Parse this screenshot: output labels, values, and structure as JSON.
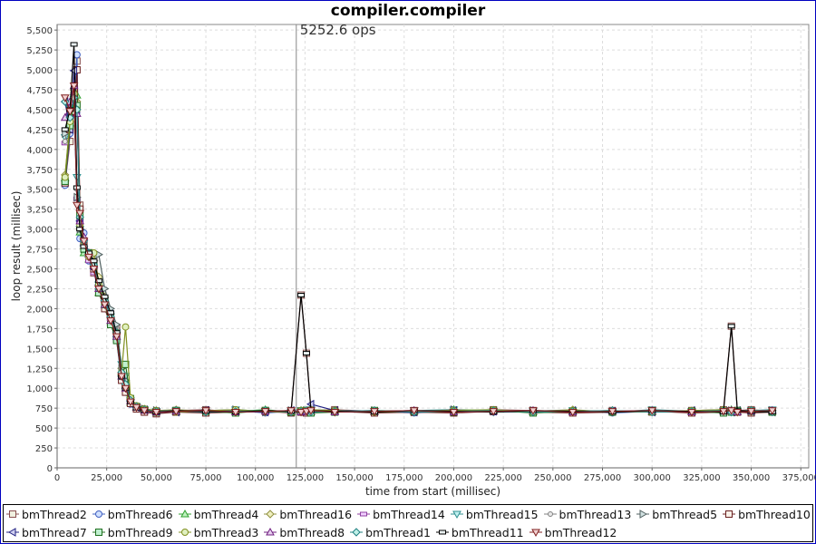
{
  "chart_data": {
    "type": "line",
    "title": "compiler.compiler",
    "xlabel": "time from start (millisec)",
    "ylabel": "loop result (millisec)",
    "xlim": [
      0,
      379000
    ],
    "ylim": [
      0,
      5570
    ],
    "xticks": [
      0,
      25000,
      50000,
      75000,
      100000,
      125000,
      150000,
      175000,
      200000,
      225000,
      250000,
      275000,
      300000,
      325000,
      350000,
      375000
    ],
    "xtick_labels": [
      "0",
      "25,000",
      "50,000",
      "75,000",
      "100,000",
      "125,000",
      "150,000",
      "175,000",
      "200,000",
      "225,000",
      "250,000",
      "275,000",
      "300,000",
      "325,000",
      "350,000",
      "375,000"
    ],
    "yticks": [
      0,
      250,
      500,
      750,
      1000,
      1250,
      1500,
      1750,
      2000,
      2250,
      2500,
      2750,
      3000,
      3250,
      3500,
      3750,
      4000,
      4250,
      4500,
      4750,
      5000,
      5250,
      5500
    ],
    "ytick_labels": [
      "0",
      "250",
      "500",
      "750",
      "1,000",
      "1,250",
      "1,500",
      "1,750",
      "2,000",
      "2,250",
      "2,500",
      "2,750",
      "3,000",
      "3,250",
      "3,500",
      "3,750",
      "4,000",
      "4,250",
      "4,500",
      "4,750",
      "5,000",
      "5,250",
      "5,500"
    ],
    "grid": true,
    "legend_placement": "bottom",
    "annotation": {
      "x": 120600,
      "label": "5252.6 ops"
    },
    "x": [
      4000,
      6500,
      8500,
      10000,
      11500,
      13500,
      16000,
      18500,
      21000,
      24000,
      27000,
      30000,
      32500,
      34500,
      37000,
      40000,
      44000,
      50000,
      60000,
      75000,
      90000,
      105000,
      118000,
      123000,
      125700,
      128000,
      140000,
      160000,
      180000,
      200000,
      220000,
      240000,
      260000,
      280000,
      300000,
      320000,
      336000,
      340000,
      343000,
      350000,
      360600
    ],
    "series": [
      {
        "name": "bmThread2",
        "marker": "square",
        "stroke": "#8a5050",
        "fill": "#f0f0e0",
        "values": [
          3570,
          4100,
          4500,
          5110,
          3300,
          2800,
          2700,
          2450,
          2250,
          2100,
          1900,
          1750,
          1150,
          1000,
          830,
          760,
          720,
          700,
          720,
          730,
          700,
          720,
          710,
          2170,
          1440,
          720,
          730,
          710,
          720,
          700,
          730,
          720,
          710,
          720,
          700,
          720,
          730,
          1780,
          720,
          730,
          710
        ]
      },
      {
        "name": "bmThread6",
        "marker": "circle",
        "stroke": "#4060c0",
        "fill": "#d0e0ff",
        "values": [
          3550,
          4200,
          4550,
          5190,
          2880,
          2950,
          2600,
          2500,
          2300,
          2000,
          1950,
          1600,
          1100,
          950,
          800,
          740,
          700,
          690,
          710,
          700,
          720,
          690,
          710,
          720,
          690,
          700,
          720,
          710,
          690,
          720,
          700,
          710,
          720,
          690,
          710,
          700,
          720,
          700,
          710,
          720,
          700
        ]
      },
      {
        "name": "bmThread4",
        "marker": "triangle-up",
        "stroke": "#30a030",
        "fill": "#c0f0c0",
        "values": [
          3640,
          4330,
          4700,
          4680,
          2960,
          2700,
          2620,
          2550,
          2200,
          2050,
          1850,
          1650,
          1200,
          1050,
          820,
          760,
          730,
          710,
          700,
          720,
          710,
          730,
          700,
          720,
          710,
          700,
          720,
          700,
          710,
          730,
          720,
          700,
          710,
          720,
          700,
          710,
          720,
          730,
          700,
          720,
          710
        ]
      },
      {
        "name": "bmThread16",
        "marker": "diamond",
        "stroke": "#909040",
        "fill": "#f0f0c0",
        "values": [
          3680,
          4350,
          4750,
          4600,
          3000,
          2750,
          2700,
          2600,
          2400,
          2150,
          1900,
          1700,
          1250,
          1050,
          850,
          770,
          740,
          720,
          730,
          710,
          720,
          700,
          720,
          710,
          720,
          730,
          700,
          720,
          710,
          700,
          720,
          710,
          730,
          700,
          720,
          710,
          700,
          720,
          710,
          700,
          720
        ]
      },
      {
        "name": "bmThread14",
        "marker": "rect",
        "stroke": "#9040a0",
        "fill": "#f0d0ff",
        "values": [
          4080,
          4550,
          4580,
          3380,
          3100,
          2800,
          2600,
          2450,
          2250,
          2050,
          1850,
          1600,
          1150,
          1000,
          820,
          750,
          720,
          700,
          710,
          720,
          700,
          710,
          720,
          700,
          710,
          720,
          700,
          710,
          720,
          700,
          710,
          720,
          700,
          710,
          720,
          700,
          710,
          720,
          700,
          710,
          720
        ]
      },
      {
        "name": "bmThread15",
        "marker": "triangle-down",
        "stroke": "#309090",
        "fill": "#c0f0f0",
        "values": [
          4150,
          4400,
          4650,
          3650,
          3000,
          2750,
          2650,
          2500,
          2300,
          2100,
          1900,
          1700,
          1300,
          1150,
          850,
          770,
          730,
          710,
          720,
          700,
          730,
          710,
          700,
          720,
          710,
          730,
          700,
          710,
          720,
          730,
          700,
          710,
          720,
          700,
          730,
          710,
          720,
          700,
          710,
          720,
          730
        ]
      },
      {
        "name": "bmThread13",
        "marker": "circle-small",
        "stroke": "#808080",
        "fill": "#e8e8e8",
        "values": [
          4100,
          4450,
          4700,
          3500,
          3050,
          2800,
          2650,
          2550,
          2350,
          2150,
          1950,
          1750,
          1200,
          1050,
          830,
          760,
          720,
          700,
          720,
          710,
          700,
          720,
          710,
          720,
          700,
          710,
          720,
          700,
          720,
          710,
          700,
          720,
          710,
          700,
          720,
          710,
          700,
          720,
          710,
          700,
          720
        ]
      },
      {
        "name": "bmThread5",
        "marker": "triangle-right",
        "stroke": "#506060",
        "fill": "#d0e0e0",
        "values": [
          4200,
          4500,
          4600,
          3400,
          3000,
          2750,
          2700,
          2600,
          2680,
          2250,
          2000,
          1800,
          1250,
          1100,
          860,
          780,
          740,
          720,
          710,
          720,
          730,
          700,
          720,
          710,
          720,
          700,
          710,
          720,
          700,
          730,
          710,
          720,
          700,
          710,
          720,
          700,
          710,
          720,
          700,
          710,
          720
        ]
      },
      {
        "name": "bmThread10",
        "marker": "square",
        "stroke": "#6a2020",
        "fill": "#f8f0e8",
        "values": [
          3580,
          4250,
          4480,
          5000,
          3250,
          2850,
          2700,
          2500,
          2200,
          2000,
          1800,
          1650,
          1100,
          950,
          810,
          740,
          700,
          680,
          700,
          690,
          700,
          710,
          690,
          700,
          690,
          700,
          710,
          690,
          700,
          690,
          710,
          700,
          690,
          700,
          710,
          690,
          700,
          710,
          700,
          690,
          700
        ]
      },
      {
        "name": "bmThread7",
        "marker": "triangle-left",
        "stroke": "#202080",
        "fill": "#d0d0f0",
        "values": [
          4600,
          4250,
          4990,
          4500,
          3100,
          2800,
          2650,
          2500,
          2300,
          2100,
          1900,
          1650,
          1150,
          1000,
          840,
          760,
          730,
          710,
          700,
          720,
          710,
          700,
          720,
          710,
          700,
          800,
          720,
          710,
          700,
          720,
          710,
          700,
          720,
          710,
          700,
          720,
          710,
          700,
          720,
          710,
          700
        ]
      },
      {
        "name": "bmThread9",
        "marker": "square",
        "stroke": "#207020",
        "fill": "#c0f0d0",
        "values": [
          3600,
          4300,
          4600,
          4550,
          3170,
          2750,
          2700,
          2580,
          2200,
          2050,
          1800,
          1600,
          1150,
          1300,
          870,
          770,
          730,
          700,
          720,
          710,
          690,
          720,
          700,
          710,
          720,
          690,
          700,
          720,
          710,
          700,
          720,
          690,
          710,
          700,
          720,
          710,
          690,
          700,
          720,
          710,
          700
        ]
      },
      {
        "name": "bmThread3",
        "marker": "circle",
        "stroke": "#809020",
        "fill": "#e0f0c0",
        "values": [
          3650,
          4350,
          4700,
          4500,
          3050,
          2800,
          2650,
          2700,
          2300,
          2100,
          1900,
          1700,
          1200,
          1770,
          880,
          780,
          740,
          720,
          700,
          720,
          730,
          710,
          700,
          720,
          710,
          730,
          720,
          700,
          710,
          720,
          730,
          700,
          720,
          710,
          700,
          720,
          730,
          710,
          700,
          720,
          710
        ]
      },
      {
        "name": "bmThread8",
        "marker": "triangle-up",
        "stroke": "#702080",
        "fill": "#e8d0f0",
        "values": [
          4400,
          4600,
          4800,
          4450,
          3100,
          2900,
          2700,
          2550,
          2250,
          2050,
          1850,
          1650,
          1150,
          1000,
          840,
          760,
          720,
          700,
          710,
          720,
          700,
          710,
          720,
          700,
          710,
          720,
          700,
          710,
          720,
          700,
          710,
          720,
          700,
          710,
          720,
          700,
          710,
          720,
          700,
          710,
          720
        ]
      },
      {
        "name": "bmThread1",
        "marker": "diamond",
        "stroke": "#208080",
        "fill": "#c0f0e8",
        "values": [
          4600,
          4400,
          4650,
          4500,
          3150,
          2850,
          2700,
          2550,
          2250,
          2100,
          1900,
          1700,
          1200,
          1050,
          850,
          770,
          730,
          710,
          720,
          700,
          710,
          720,
          700,
          710,
          720,
          700,
          710,
          720,
          700,
          710,
          720,
          700,
          710,
          720,
          700,
          710,
          720,
          700,
          710,
          720,
          700
        ]
      },
      {
        "name": "bmThread11",
        "marker": "rect",
        "stroke": "#000000",
        "fill": "#e8f0f0",
        "values": [
          4250,
          4500,
          5320,
          3520,
          3000,
          2780,
          2700,
          2600,
          2350,
          2150,
          1950,
          1700,
          1150,
          1000,
          830,
          750,
          720,
          700,
          720,
          710,
          700,
          720,
          710,
          2170,
          1440,
          720,
          710,
          700,
          720,
          710,
          700,
          720,
          710,
          700,
          720,
          710,
          700,
          1780,
          720,
          710,
          700
        ]
      },
      {
        "name": "bmThread12",
        "marker": "triangle-down",
        "stroke": "#802020",
        "fill": "#f0d0d0",
        "values": [
          4650,
          4480,
          4800,
          3300,
          3200,
          2850,
          2650,
          2500,
          2250,
          2050,
          1850,
          1650,
          1150,
          1000,
          830,
          760,
          720,
          700,
          710,
          720,
          700,
          710,
          720,
          700,
          710,
          720,
          700,
          710,
          720,
          700,
          710,
          720,
          700,
          710,
          720,
          700,
          710,
          720,
          700,
          710,
          720
        ]
      }
    ]
  }
}
